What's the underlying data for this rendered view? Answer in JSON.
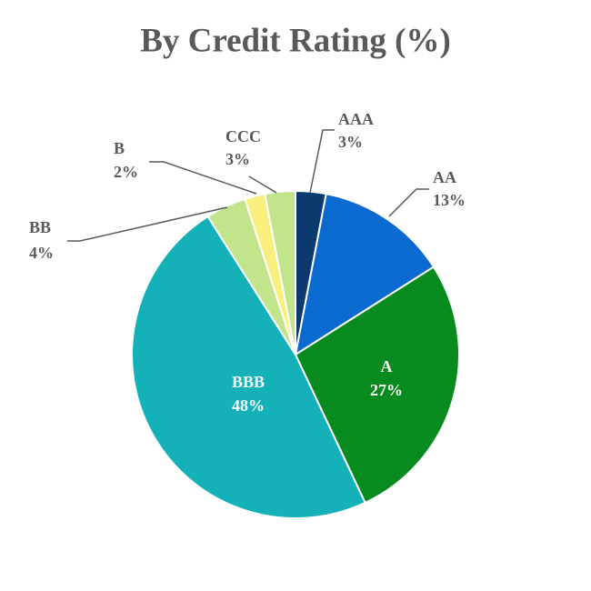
{
  "chart_data": {
    "type": "pie",
    "title": "By Credit Rating (%)",
    "categories": [
      "AAA",
      "AA",
      "A",
      "BBB",
      "BB",
      "B",
      "CCC"
    ],
    "values": [
      3,
      13,
      27,
      48,
      4,
      2,
      3
    ],
    "value_labels": [
      "3%",
      "13%",
      "27%",
      "48%",
      "4%",
      "2%",
      "3%"
    ],
    "colors": [
      "#0b3a6e",
      "#0b6ad0",
      "#078a1e",
      "#14b1b8",
      "#c2e58b",
      "#f9ef7d",
      "#c2e58b"
    ]
  }
}
